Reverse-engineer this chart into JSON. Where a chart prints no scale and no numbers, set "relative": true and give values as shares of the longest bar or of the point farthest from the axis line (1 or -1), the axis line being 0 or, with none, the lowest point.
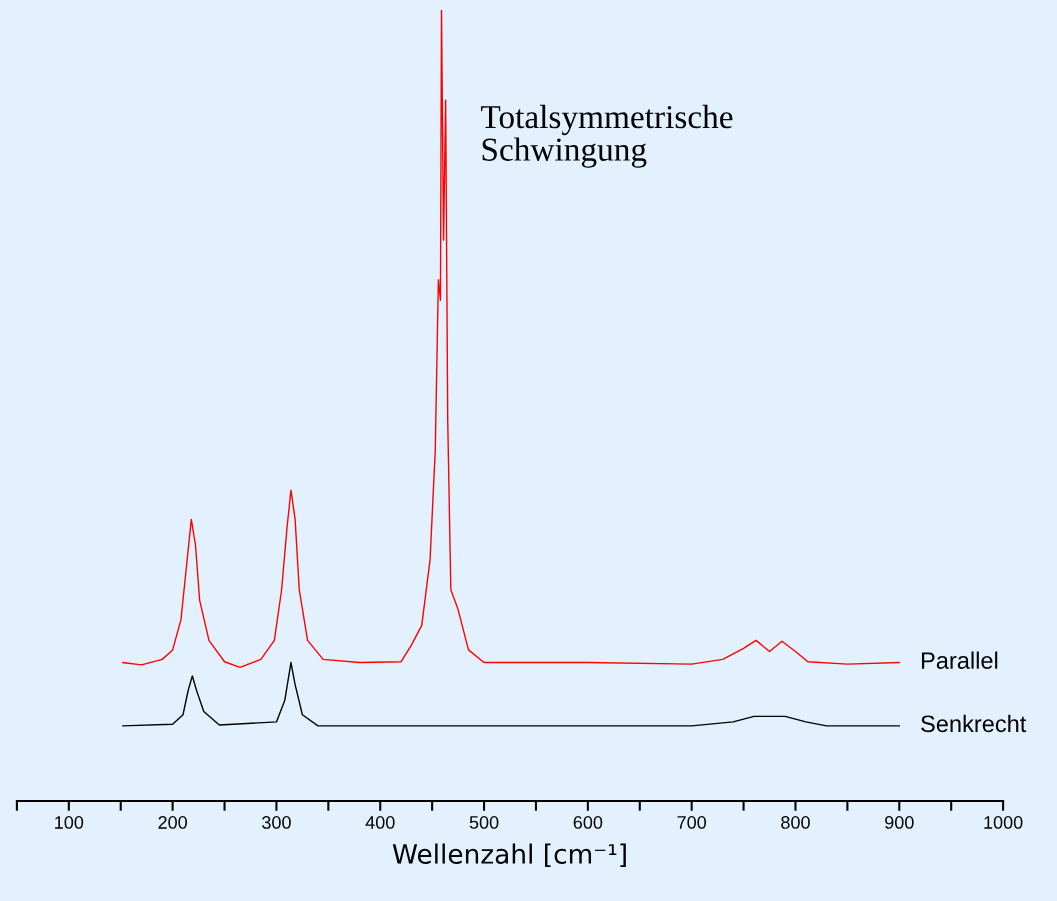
{
  "chart_data": {
    "type": "line",
    "relative": true,
    "xlabel": "Wellenzahl [cm⁻¹]",
    "xlim": [
      50,
      1000
    ],
    "xticks": [
      {
        "value": 50,
        "label": null
      },
      100,
      {
        "value": 150,
        "label": null
      },
      200,
      {
        "value": 250,
        "label": null
      },
      300,
      {
        "value": 350,
        "label": null
      },
      400,
      {
        "value": 450,
        "label": null
      },
      500,
      {
        "value": 550,
        "label": null
      },
      600,
      {
        "value": 650,
        "label": null
      },
      700,
      {
        "value": 750,
        "label": null
      },
      800,
      {
        "value": 850,
        "label": null
      },
      900,
      {
        "value": 950,
        "label": null
      },
      1000
    ],
    "annotations": [
      "Totalsymmetrische\nSchwingung"
    ],
    "grid": false,
    "legend": false,
    "marker": "none",
    "line_style": "solid",
    "tick_labels": "x",
    "series": [
      {
        "name": "Parallel",
        "color": "#ff0000",
        "x": [
          152,
          170,
          190,
          200,
          208,
          214,
          218,
          222,
          226,
          235,
          250,
          265,
          285,
          298,
          305,
          310,
          314,
          318,
          322,
          330,
          345,
          380,
          420,
          430,
          440,
          448,
          453,
          456,
          458,
          459,
          461,
          463,
          465,
          468,
          475,
          485,
          500,
          600,
          700,
          730,
          750,
          762,
          775,
          787,
          800,
          812,
          850,
          900
        ],
        "values": [
          0.175,
          0.172,
          0.179,
          0.191,
          0.229,
          0.305,
          0.356,
          0.324,
          0.254,
          0.203,
          0.176,
          0.169,
          0.179,
          0.203,
          0.267,
          0.343,
          0.393,
          0.356,
          0.267,
          0.203,
          0.179,
          0.175,
          0.176,
          0.197,
          0.222,
          0.305,
          0.443,
          0.659,
          0.633,
          1.0,
          0.709,
          0.886,
          0.482,
          0.267,
          0.242,
          0.191,
          0.175,
          0.175,
          0.173,
          0.179,
          0.193,
          0.203,
          0.189,
          0.202,
          0.189,
          0.176,
          0.173,
          0.175
        ]
      },
      {
        "name": "Senkrecht",
        "color": "#000000",
        "x": [
          152,
          200,
          210,
          215,
          219,
          223,
          230,
          245,
          300,
          308,
          314,
          318,
          325,
          340,
          500,
          700,
          740,
          760,
          790,
          810,
          830,
          900
        ],
        "values": [
          0.095,
          0.097,
          0.109,
          0.14,
          0.158,
          0.14,
          0.113,
          0.096,
          0.1,
          0.127,
          0.175,
          0.147,
          0.109,
          0.095,
          0.095,
          0.095,
          0.1,
          0.107,
          0.107,
          0.1,
          0.095,
          0.095
        ]
      }
    ]
  }
}
